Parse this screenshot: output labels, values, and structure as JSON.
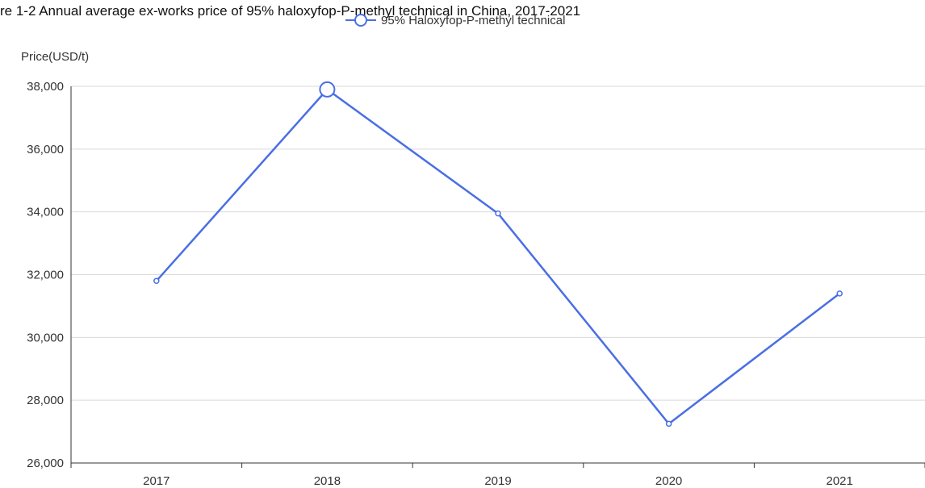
{
  "chart_data": {
    "type": "line",
    "title": "re 1-2 Annual average ex-works price of 95% haloxyfop-P-methyl technical in China, 2017-2021",
    "ylabel": "Price(USD/t)",
    "xlabel": "",
    "categories": [
      "2017",
      "2018",
      "2019",
      "2020",
      "2021"
    ],
    "series": [
      {
        "name": "95% Haloxyfop-P-methyl technical",
        "values": [
          31800,
          37900,
          33950,
          27250,
          31400
        ],
        "color": "#4a6fe3"
      }
    ],
    "ylim": [
      26000,
      38000
    ],
    "yticks": [
      "26,000",
      "28,000",
      "30,000",
      "32,000",
      "34,000",
      "36,000",
      "38,000"
    ],
    "grid": true,
    "legend": "top-center"
  }
}
